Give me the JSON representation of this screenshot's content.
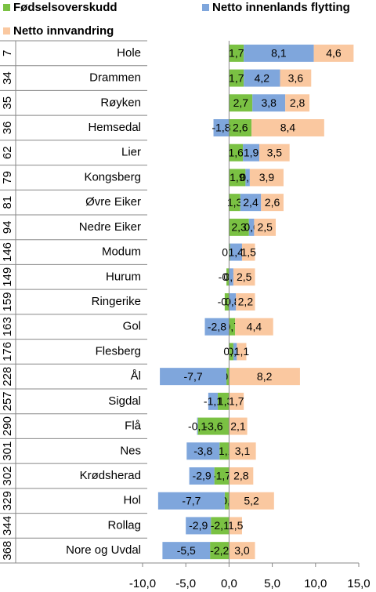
{
  "chart_data": {
    "type": "bar",
    "orientation": "horizontal",
    "stacked": true,
    "ranks": [
      7,
      34,
      35,
      36,
      62,
      79,
      81,
      94,
      146,
      149,
      159,
      163,
      176,
      228,
      257,
      290,
      301,
      302,
      329,
      344,
      368
    ],
    "categories": [
      "Hole",
      "Drammen",
      "Røyken",
      "Hemsedal",
      "Lier",
      "Kongsberg",
      "Øvre Eiker",
      "Nedre Eiker",
      "Modum",
      "Hurum",
      "Ringerike",
      "Gol",
      "Flesberg",
      "Ål",
      "Sigdal",
      "Flå",
      "Nes",
      "Krødsherad",
      "Hol",
      "Rollag",
      "Nore og Uvdal"
    ],
    "series": [
      {
        "name": "Fødselsoverskudd",
        "color": "#7ac143",
        "values": [
          1.7,
          1.7,
          2.7,
          2.6,
          1.6,
          1.9,
          1.3,
          2.3,
          0.1,
          -0.3,
          -0.5,
          0.7,
          0.5,
          -0.3,
          -1.3,
          -3.6,
          -1.1,
          -1.7,
          -0.5,
          -2.1,
          -2.2
        ],
        "value_labels": [
          "1,7",
          "1,7",
          "2,7",
          "2,6",
          "1,6",
          "1,9",
          "1,3",
          "2,3",
          "0,1",
          "-0,3",
          "-0,5",
          "0,7",
          "0,5",
          "-0,3",
          "-1,3",
          "-3,6",
          "-1,1",
          "-1,7",
          "-0,5",
          "-2,1",
          "-2,2"
        ]
      },
      {
        "name": "Netto innenlands flytting",
        "color": "#7fa6dc",
        "values": [
          8.1,
          4.2,
          3.8,
          -1.8,
          1.9,
          0.5,
          2.4,
          0.6,
          1.4,
          0.5,
          0.8,
          -2.8,
          0.4,
          -7.7,
          -1.1,
          -0.1,
          -3.8,
          -2.9,
          -7.7,
          -2.9,
          -5.5
        ],
        "value_labels": [
          "8,1",
          "4,2",
          "3,8",
          "-1,8",
          "1,9",
          "0,5",
          "2,4",
          "0,6",
          "1,4",
          "0,5",
          "0,8",
          "-2,8",
          "0,4",
          "-7,7",
          "-1,1",
          "-0,1",
          "-3,8",
          "-2,9",
          "-7,7",
          "-2,9",
          "-5,5"
        ]
      },
      {
        "name": "Netto innvandring",
        "color": "#fac8a0",
        "values": [
          4.6,
          3.6,
          2.8,
          8.4,
          3.5,
          3.9,
          2.6,
          2.5,
          1.5,
          2.5,
          2.2,
          4.4,
          1.1,
          8.2,
          1.7,
          2.1,
          3.1,
          2.8,
          5.2,
          1.5,
          3.0
        ],
        "value_labels": [
          "4,6",
          "3,6",
          "2,8",
          "8,4",
          "3,5",
          "3,9",
          "2,6",
          "2,5",
          "1,5",
          "2,5",
          "2,2",
          "4,4",
          "1,1",
          "8,2",
          "1,7",
          "2,1",
          "3,1",
          "2,8",
          "5,2",
          "1,5",
          "3,0"
        ]
      }
    ],
    "xlim": [
      -10,
      15
    ],
    "xticks": [
      {
        "value": -10,
        "label": "-10,0"
      },
      {
        "value": -5,
        "label": "-5,0"
      },
      {
        "value": 0,
        "label": "0,0"
      },
      {
        "value": 5,
        "label": "5,0"
      },
      {
        "value": 10,
        "label": "10,0"
      },
      {
        "value": 15,
        "label": "15,0"
      }
    ],
    "legend": "top"
  }
}
